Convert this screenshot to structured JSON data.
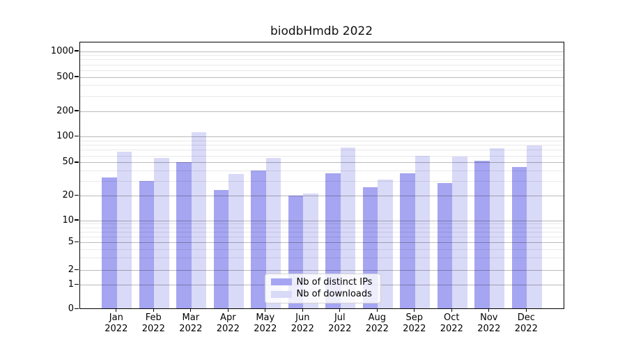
{
  "figure": {
    "title": "biodbHmdb 2022"
  },
  "chart_data": {
    "type": "bar",
    "title": "biodbHmdb 2022",
    "categories": [
      "Jan",
      "Feb",
      "Mar",
      "Apr",
      "May",
      "Jun",
      "Jul",
      "Aug",
      "Sep",
      "Oct",
      "Nov",
      "Dec"
    ],
    "year": "2022",
    "series": [
      {
        "name": "Nb of distinct IPs",
        "color": "#a5a5f1",
        "values": [
          33,
          30,
          50,
          23,
          40,
          20,
          37,
          25,
          37,
          28,
          52,
          44
        ]
      },
      {
        "name": "Nb of downloads",
        "color": "#d9d9f8",
        "values": [
          66,
          56,
          112,
          36,
          56,
          21,
          74,
          31,
          59,
          58,
          72,
          78
        ]
      }
    ],
    "xlabel": "",
    "ylabel": "",
    "yscale": "symlog-like (log spacing with compressed 0-1 region)",
    "y_ticks": [
      0,
      1,
      2,
      5,
      10,
      20,
      50,
      100,
      200,
      500,
      1000
    ],
    "ylim": [
      0,
      1280
    ],
    "grid": true,
    "grid_minor": true,
    "legend_position": "lower center"
  }
}
